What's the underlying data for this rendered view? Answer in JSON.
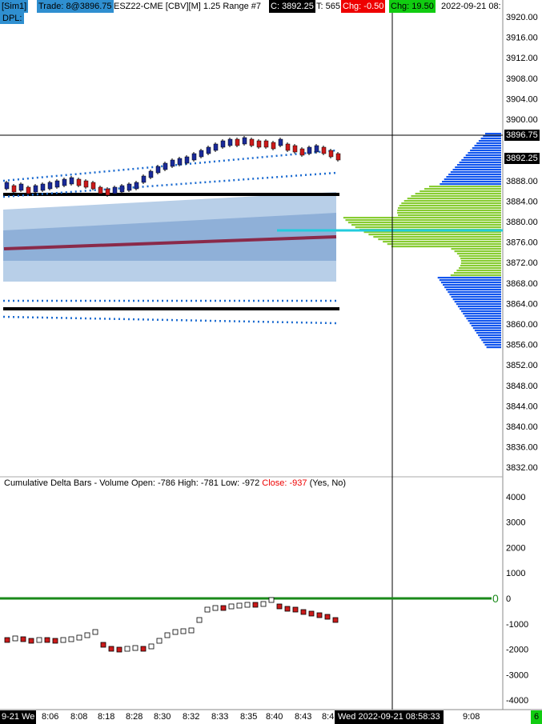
{
  "header": {
    "sim": "[Sim1]",
    "trade": "Trade: 8@3896.75",
    "instrument": "ESZ22-CME [CBV][M]  1.25 Range  #7",
    "close": "C: 3892.25",
    "ticks": "T: 565",
    "chg": "Chg: -0.50",
    "dchg": "Chg: 19.50",
    "datetime": "2022-09-21 08:"
  },
  "dpl": "DPL:",
  "price_axis": [
    "3920.00",
    "3916.00",
    "3912.00",
    "3908.00",
    "3904.00",
    "3900.00",
    "3896.75",
    "3892.25",
    "3888.00",
    "3884.00",
    "3880.00",
    "3876.00",
    "3872.00",
    "3868.00",
    "3864.00",
    "3860.00",
    "3856.00",
    "3852.00",
    "3848.00",
    "3844.00",
    "3840.00",
    "3836.00",
    "3832.00"
  ],
  "delta_title": {
    "name": "Cumulative Delta Bars - Volume",
    "open": "Open: -786",
    "high": "High: -781",
    "low": "Low: -972",
    "close": "Close: -937",
    "params": "(Yes, No)"
  },
  "delta_axis": [
    "4000",
    "3000",
    "2000",
    "1000",
    "0",
    "-1000",
    "-2000",
    "-3000",
    "-4000"
  ],
  "zero_label": "0",
  "time_axis": {
    "day_label": "9-21 We",
    "labels": [
      "8:06",
      "8:08",
      "8:18",
      "8:28",
      "8:30",
      "8:32",
      "8:33",
      "8:35",
      "8:40",
      "8:43",
      "8:4",
      "9:08"
    ],
    "crosshair": "Wed 2022-09-21 08:58:33",
    "corner": "6"
  },
  "colors": {
    "up_bar": "#1a2a9a",
    "down_bar": "#cc1a1a",
    "band_dots": "#1a6ad0",
    "level_lines": "#000000",
    "vwap": "#8a2a4a",
    "profile_bid": "#1155ee",
    "profile_ask": "#88cc33",
    "zero_line": "#1a8a1a",
    "poc": "#22ccdd"
  }
}
